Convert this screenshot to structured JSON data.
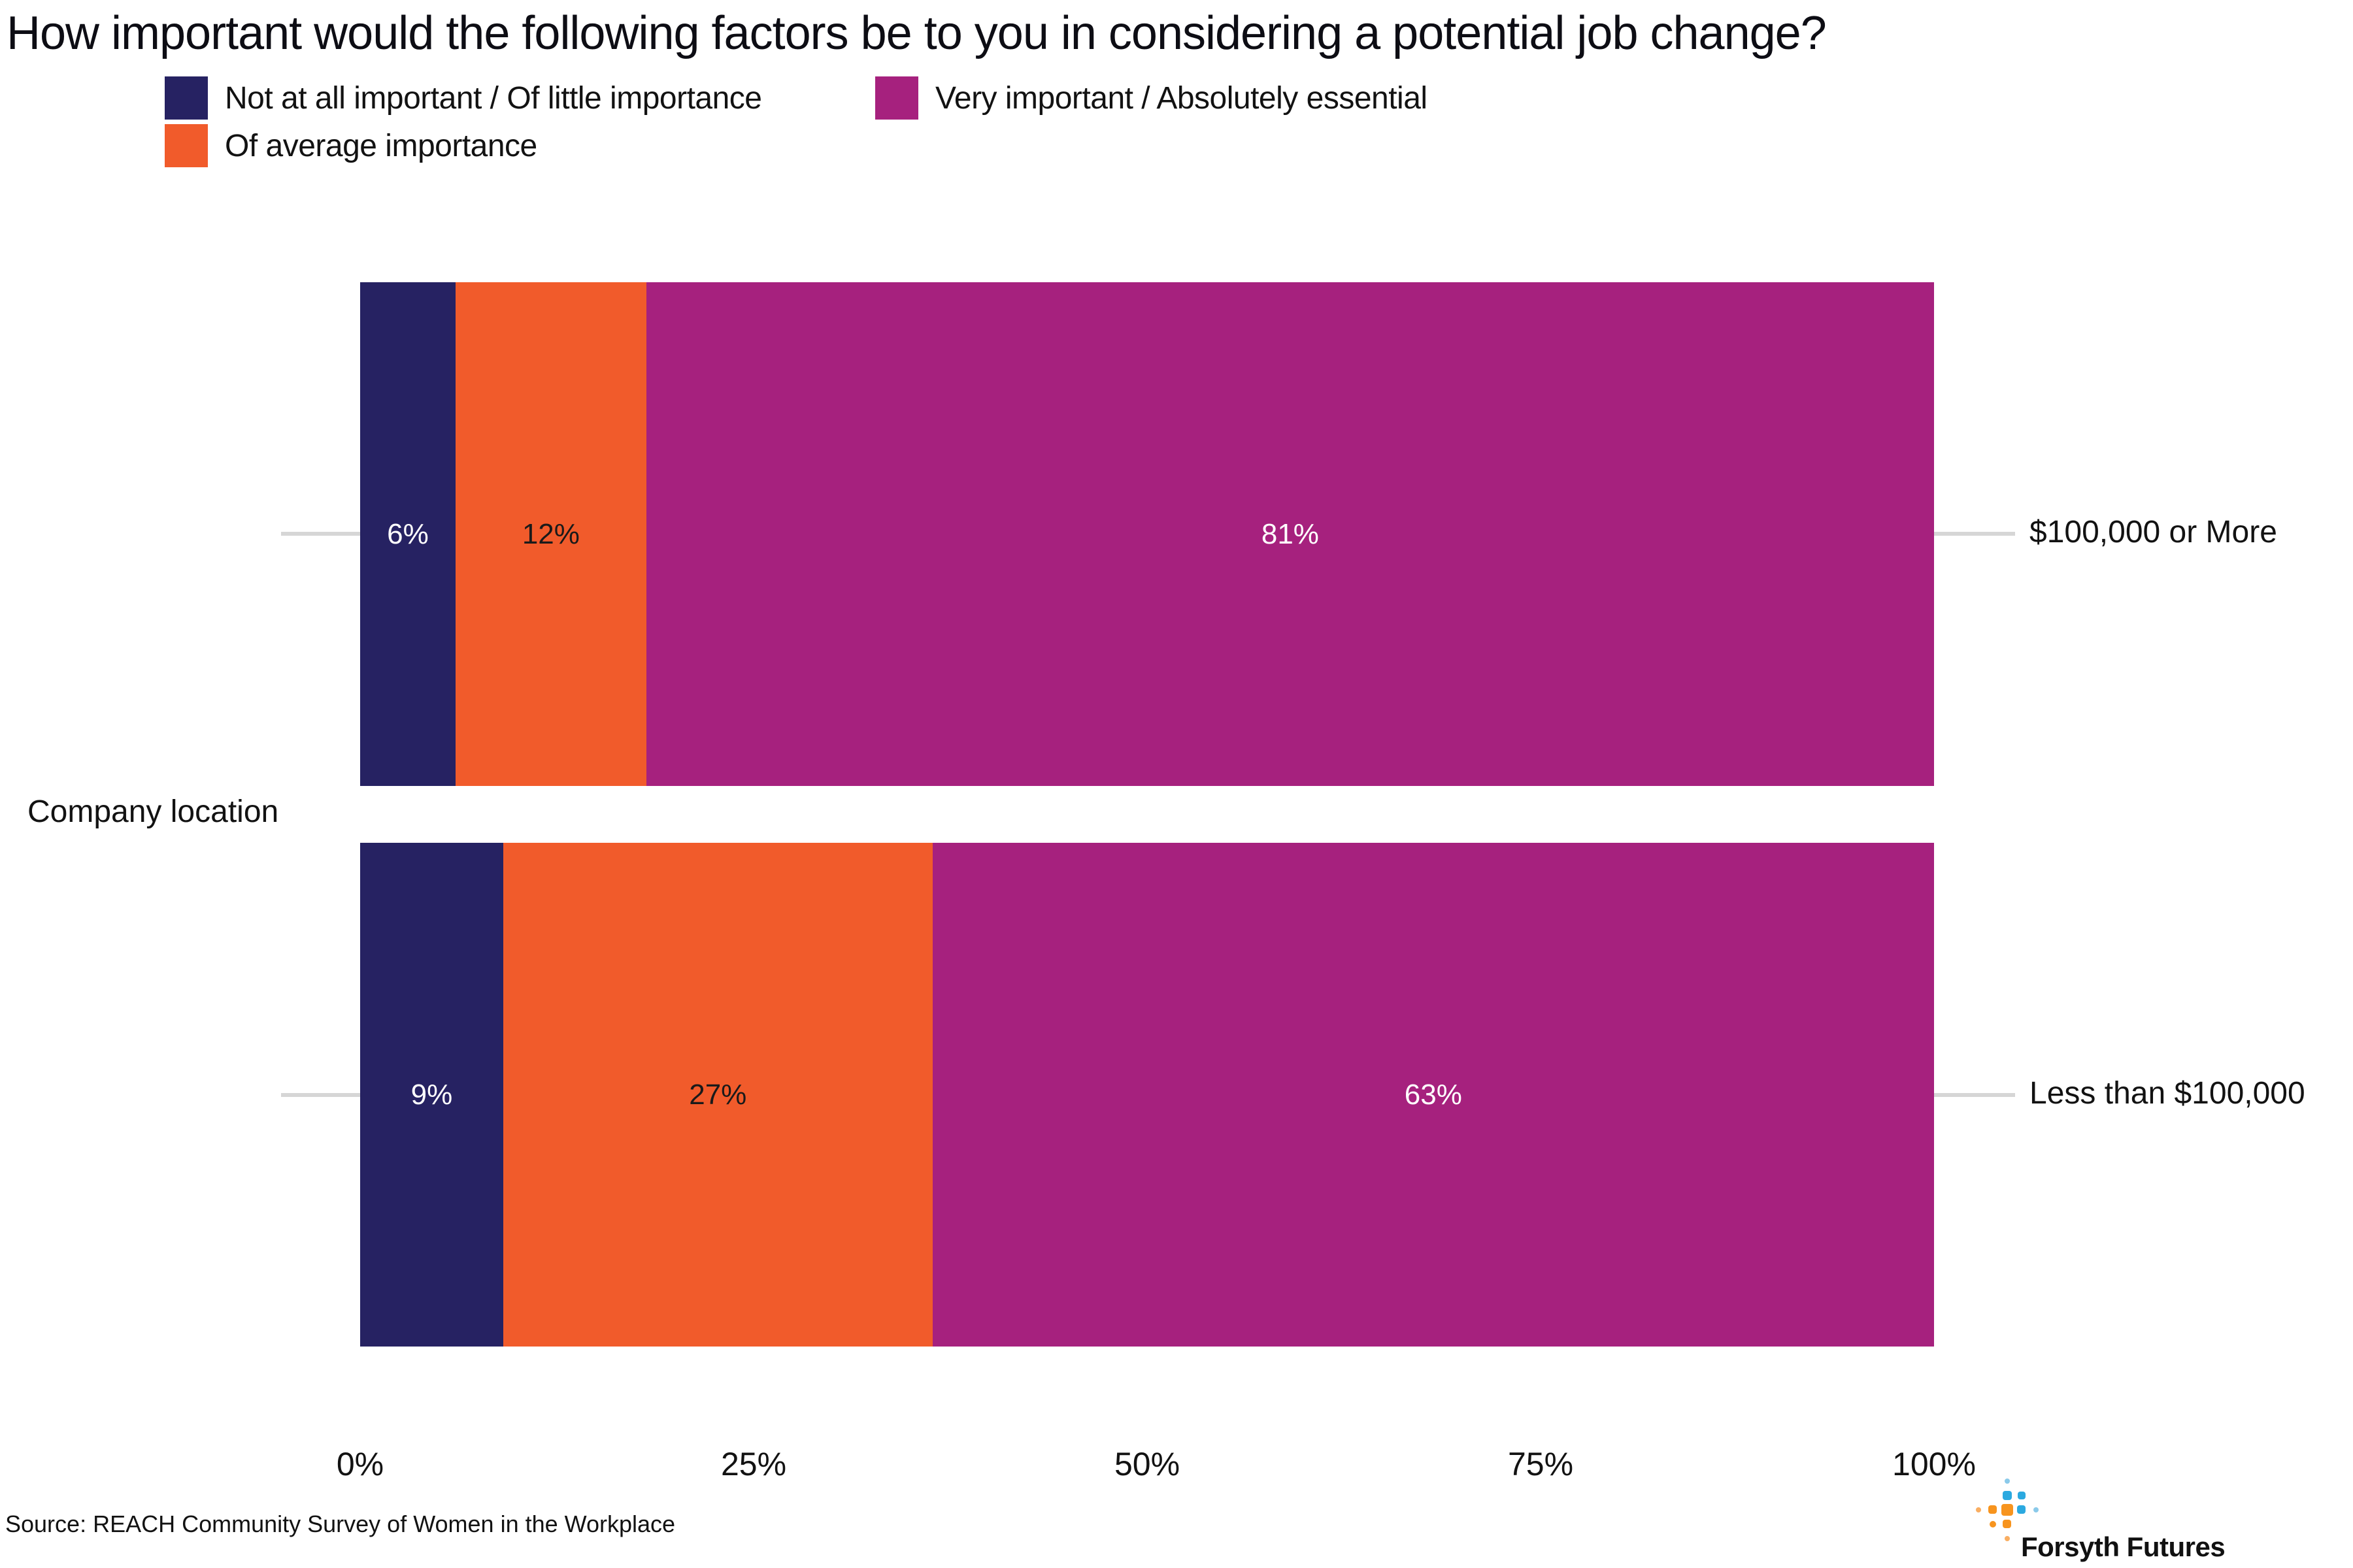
{
  "title": "How important would the following factors be to you in considering a potential job change?",
  "legend": {
    "items": [
      {
        "label": "Not at all important / Of little importance",
        "color": "#262262"
      },
      {
        "label": "Very important / Absolutely essential",
        "color": "#A6217E"
      },
      {
        "label": "Of average importance",
        "color": "#F15B2B"
      }
    ]
  },
  "chart_data": {
    "type": "bar",
    "orientation": "horizontal-stacked",
    "group_label": "Company location",
    "categories": [
      "$100,000 or More",
      "Less than $100,000"
    ],
    "series": [
      {
        "name": "Not at all important / Of little importance",
        "color": "#262262",
        "label_color": "#ffffff",
        "values": [
          6,
          9
        ]
      },
      {
        "name": "Of average importance",
        "color": "#F15B2B",
        "label_color": "#1a1a1a",
        "values": [
          12,
          27
        ]
      },
      {
        "name": "Very important / Absolutely essential",
        "color": "#A6217E",
        "label_color": "#ffffff",
        "values": [
          81,
          63
        ]
      }
    ],
    "bar_labels": [
      [
        "6%",
        "12%",
        "81%"
      ],
      [
        "9%",
        "27%",
        "63%"
      ]
    ],
    "x_ticks": [
      "0%",
      "25%",
      "50%",
      "75%",
      "100%"
    ],
    "xlim": [
      0,
      100
    ],
    "legend_position": "top-left",
    "grid": false
  },
  "source": "Source: REACH Community Survey of Women in the Workplace",
  "logo": {
    "text": "Forsyth Futures",
    "colors": {
      "blue": "#2BA9E0",
      "light_blue": "#8BCAEA",
      "orange": "#F7941E",
      "light_orange": "#F9AE62"
    }
  },
  "colors": {
    "tick_gray": "#D6D6D6",
    "text": "#1A1A1A"
  }
}
